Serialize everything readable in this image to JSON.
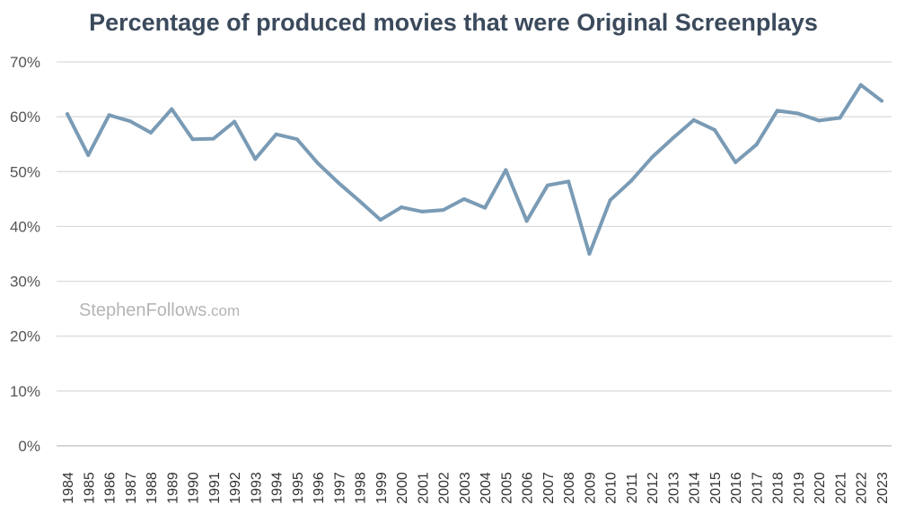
{
  "chart_data": {
    "type": "line",
    "title": "Percentage of produced movies that were Original Screenplays",
    "xlabel": "",
    "ylabel": "",
    "ylim": [
      0,
      70
    ],
    "yticks": [
      "0%",
      "10%",
      "20%",
      "30%",
      "40%",
      "50%",
      "60%",
      "70%"
    ],
    "grid": true,
    "categories": [
      "1984",
      "1985",
      "1986",
      "1987",
      "1988",
      "1989",
      "1990",
      "1991",
      "1992",
      "1993",
      "1994",
      "1995",
      "1996",
      "1997",
      "1998",
      "1999",
      "2000",
      "2001",
      "2002",
      "2003",
      "2004",
      "2005",
      "2006",
      "2007",
      "2008",
      "2009",
      "2010",
      "2011",
      "2012",
      "2013",
      "2014",
      "2015",
      "2016",
      "2017",
      "2018",
      "2019",
      "2020",
      "2021",
      "2022",
      "2023"
    ],
    "series": [
      {
        "values": [
          60.5,
          53.0,
          60.3,
          59.2,
          57.1,
          61.4,
          55.9,
          56.0,
          59.1,
          52.3,
          56.8,
          55.9,
          51.5,
          47.9,
          44.6,
          41.2,
          43.5,
          42.7,
          43.0,
          45.0,
          43.4,
          50.3,
          41.0,
          47.5,
          48.2,
          35.0,
          44.8,
          48.3,
          52.6,
          56.1,
          59.4,
          57.6,
          51.7,
          54.9,
          61.1,
          60.6,
          59.3,
          59.8,
          65.8,
          62.9
        ],
        "color": "#7a9bb5"
      }
    ],
    "watermark": {
      "main": "StephenFollows",
      "suffix": ".com"
    },
    "colors": {
      "line": "#7a9bb5",
      "grid": "#d9d9d9",
      "title": "#3b4a5c"
    }
  }
}
